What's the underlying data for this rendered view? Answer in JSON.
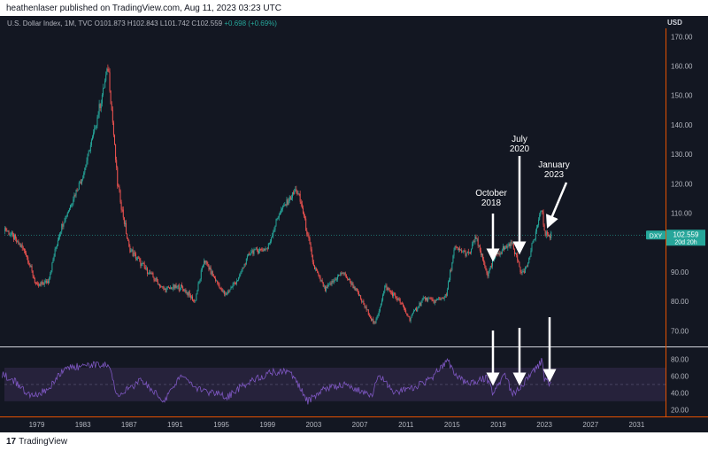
{
  "header": {
    "publisher_line": "heathenlaser published on TradingView.com, Aug 11, 2023 03:23 UTC"
  },
  "symbol_line": {
    "name": "U.S. Dollar Index, 1M, TVC",
    "ohlc": "O101.873  H102.843  L101.742  C102.559",
    "change": "+0.698 (+0.69%)"
  },
  "currency": "USD",
  "price_badge": {
    "ticker": "DXY",
    "price": "102.559",
    "countdown": "20d 20h"
  },
  "footer": {
    "logo_mark": "17",
    "brand": "TradingView"
  },
  "colors": {
    "background": "#131722",
    "up": "#26a69a",
    "down": "#ef5350",
    "rsi": "#7e57c2",
    "rsi_band": "#2a2540",
    "axis": "#e65100",
    "annotation": "#ffffff"
  },
  "chart_data": [
    {
      "type": "candlestick",
      "frequency": "monthly",
      "x": [
        1976.0,
        1978.0,
        1979.0,
        1980.0,
        1981.0,
        1983.0,
        1984.0,
        1985.2,
        1986.0,
        1987.0,
        1988.0,
        1990.0,
        1991.5,
        1992.7,
        1993.5,
        1995.3,
        1996.5,
        1997.5,
        1999.0,
        2000.0,
        2001.5,
        2002.0,
        2003.0,
        2004.0,
        2005.5,
        2006.5,
        2008.3,
        2009.2,
        2010.5,
        2011.3,
        2012.5,
        2013.5,
        2014.5,
        2015.2,
        2016.5,
        2017.0,
        2018.1,
        2018.8,
        2019.5,
        2020.2,
        2021.0,
        2021.5,
        2022.8,
        2023.0,
        2023.6
      ],
      "y": [
        106,
        97,
        85,
        87,
        104,
        123,
        138,
        160,
        120,
        98,
        93,
        84,
        85,
        80,
        94,
        82,
        88,
        97,
        98,
        110,
        118,
        112,
        92,
        84,
        90,
        85,
        72,
        85,
        80,
        74,
        81,
        80,
        82,
        98,
        96,
        102,
        89,
        96,
        98,
        100,
        90,
        92,
        112,
        103,
        102.559
      ],
      "current_price": 102.559,
      "ticker": "DXY",
      "ylim": [
        65,
        171
      ],
      "y_ticks": [
        70,
        80,
        90,
        100,
        110,
        120,
        130,
        140,
        150,
        160,
        170
      ],
      "y_tick_labels": [
        "70.00",
        "80.00",
        "90.00",
        "100.00",
        "110.00",
        "120.00",
        "130.00",
        "140.00",
        "150.00",
        "160.00",
        "170.00"
      ],
      "xlim": [
        1976.2,
        2033.5
      ],
      "x_ticks": [
        1979,
        1983,
        1987,
        1991,
        1995,
        1999,
        2003,
        2007,
        2011,
        2015,
        2019,
        2023,
        2027,
        2031
      ],
      "annotations": [
        {
          "text": [
            "October",
            "2018"
          ],
          "x": 2018.5
        },
        {
          "text": [
            "July",
            "2020"
          ],
          "x": 2020.5
        },
        {
          "text": [
            "January",
            "2023"
          ],
          "x": 2023.0
        }
      ]
    },
    {
      "type": "line",
      "indicator": "RSI",
      "x": [
        1976.0,
        1977.0,
        1978.5,
        1980.0,
        1981.5,
        1984.0,
        1985.2,
        1986.0,
        1988.0,
        1990.0,
        1991.5,
        1993.0,
        1995.5,
        1997.5,
        1999.5,
        2001.0,
        2002.5,
        2004.0,
        2006.0,
        2008.0,
        2008.7,
        2010.0,
        2011.5,
        2013.0,
        2014.6,
        2015.5,
        2016.5,
        2018.0,
        2018.5,
        2019.5,
        2020.3,
        2021.0,
        2022.8,
        2023.0,
        2023.6
      ],
      "y": [
        62,
        55,
        35,
        45,
        70,
        73,
        75,
        35,
        55,
        30,
        60,
        45,
        35,
        55,
        65,
        65,
        30,
        45,
        50,
        35,
        62,
        40,
        45,
        55,
        78,
        58,
        50,
        58,
        40,
        62,
        38,
        48,
        78,
        55,
        50
      ],
      "ylim": [
        14,
        90
      ],
      "y_ticks": [
        20,
        40,
        60,
        80
      ],
      "y_tick_labels": [
        "20.00",
        "40.00",
        "60.00",
        "80.00"
      ],
      "bands": [
        30,
        70
      ],
      "arrow_x": [
        2018.5,
        2020.5,
        2023.0
      ]
    }
  ]
}
